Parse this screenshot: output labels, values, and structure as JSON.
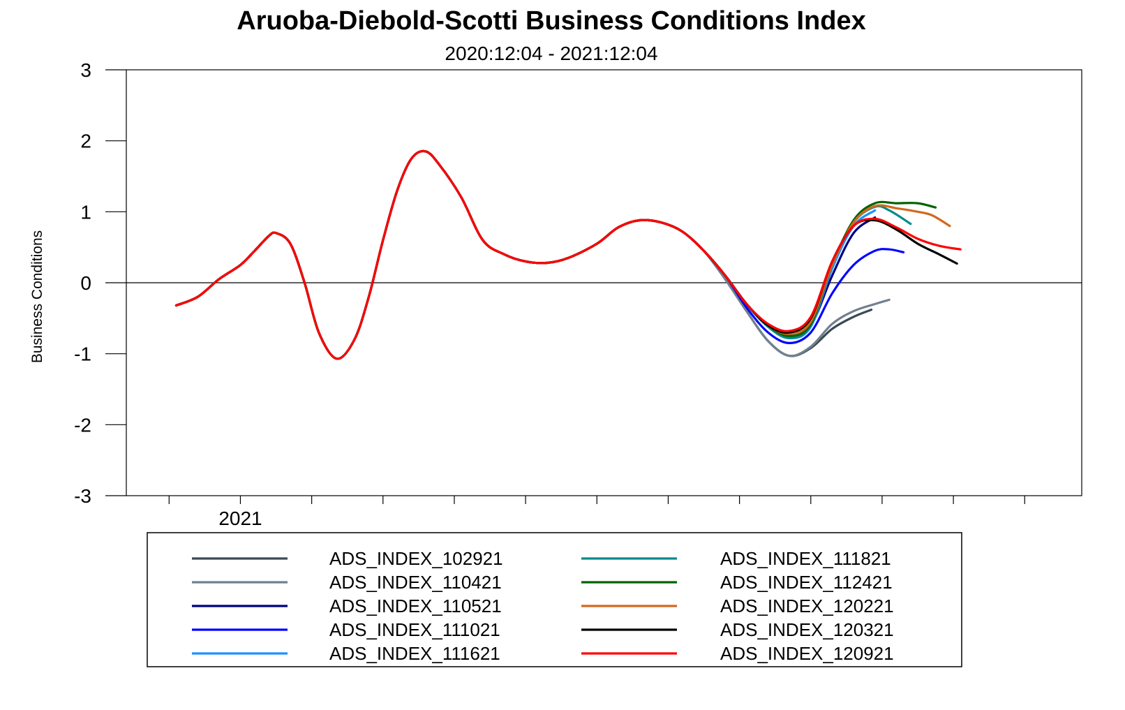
{
  "chart_data": {
    "type": "line",
    "title": "Aruoba-Diebold-Scotti Business Conditions Index",
    "subtitle": "2020:12:04 - 2021:12:04",
    "ylabel": "Business Conditions",
    "xlabel": "",
    "x_tick_label": "2021",
    "ylim": [
      -3,
      3
    ],
    "yticks": [
      "3",
      "2",
      "1",
      "0",
      "-1",
      "-2",
      "-3"
    ],
    "x_range_months": [
      -1.6,
      11.8
    ],
    "legend_position": "bottom",
    "common_path": [
      [
        -0.9,
        -0.32
      ],
      [
        -0.6,
        -0.2
      ],
      [
        -0.3,
        0.05
      ],
      [
        0.0,
        0.25
      ],
      [
        0.2,
        0.45
      ],
      [
        0.4,
        0.66
      ],
      [
        0.5,
        0.7
      ],
      [
        0.7,
        0.55
      ],
      [
        0.9,
        0.0
      ],
      [
        1.1,
        -0.7
      ],
      [
        1.35,
        -1.07
      ],
      [
        1.6,
        -0.8
      ],
      [
        1.8,
        -0.2
      ],
      [
        2.0,
        0.6
      ],
      [
        2.2,
        1.3
      ],
      [
        2.4,
        1.75
      ],
      [
        2.6,
        1.85
      ],
      [
        2.8,
        1.65
      ],
      [
        3.1,
        1.2
      ],
      [
        3.4,
        0.6
      ],
      [
        3.7,
        0.4
      ],
      [
        4.0,
        0.3
      ],
      [
        4.3,
        0.28
      ],
      [
        4.6,
        0.35
      ],
      [
        5.0,
        0.55
      ],
      [
        5.3,
        0.78
      ],
      [
        5.6,
        0.88
      ],
      [
        5.9,
        0.85
      ],
      [
        6.2,
        0.72
      ],
      [
        6.5,
        0.45
      ],
      [
        6.8,
        0.1
      ]
    ],
    "series": [
      {
        "name": "ADS_INDEX_102921",
        "color": "#3b4a54",
        "values": [
          [
            6.8,
            0.05
          ],
          [
            7.1,
            -0.4
          ],
          [
            7.4,
            -0.82
          ],
          [
            7.7,
            -1.03
          ],
          [
            8.0,
            -0.92
          ],
          [
            8.3,
            -0.65
          ],
          [
            8.6,
            -0.48
          ],
          [
            8.85,
            -0.38
          ]
        ]
      },
      {
        "name": "ADS_INDEX_110421",
        "color": "#708090",
        "values": [
          [
            6.8,
            0.05
          ],
          [
            7.1,
            -0.4
          ],
          [
            7.4,
            -0.82
          ],
          [
            7.7,
            -1.03
          ],
          [
            8.0,
            -0.9
          ],
          [
            8.3,
            -0.58
          ],
          [
            8.6,
            -0.4
          ],
          [
            8.9,
            -0.3
          ],
          [
            9.1,
            -0.24
          ]
        ]
      },
      {
        "name": "ADS_INDEX_110521",
        "color": "#000080",
        "values": [
          [
            6.8,
            0.1
          ],
          [
            7.1,
            -0.3
          ],
          [
            7.4,
            -0.6
          ],
          [
            7.7,
            -0.75
          ],
          [
            8.0,
            -0.6
          ],
          [
            8.3,
            0.1
          ],
          [
            8.6,
            0.7
          ],
          [
            8.9,
            0.92
          ]
        ]
      },
      {
        "name": "ADS_INDEX_111021",
        "color": "#0000ff",
        "values": [
          [
            6.8,
            0.1
          ],
          [
            7.1,
            -0.35
          ],
          [
            7.4,
            -0.7
          ],
          [
            7.7,
            -0.85
          ],
          [
            8.0,
            -0.7
          ],
          [
            8.3,
            -0.15
          ],
          [
            8.6,
            0.25
          ],
          [
            8.9,
            0.45
          ],
          [
            9.1,
            0.47
          ],
          [
            9.3,
            0.43
          ]
        ]
      },
      {
        "name": "ADS_INDEX_111621",
        "color": "#1e90ff",
        "values": [
          [
            6.8,
            0.1
          ],
          [
            7.1,
            -0.3
          ],
          [
            7.4,
            -0.62
          ],
          [
            7.7,
            -0.78
          ],
          [
            8.0,
            -0.62
          ],
          [
            8.3,
            0.2
          ],
          [
            8.6,
            0.8
          ],
          [
            8.9,
            1.02
          ]
        ]
      },
      {
        "name": "ADS_INDEX_111821",
        "color": "#008b8b",
        "values": [
          [
            6.8,
            0.1
          ],
          [
            7.1,
            -0.3
          ],
          [
            7.4,
            -0.62
          ],
          [
            7.7,
            -0.78
          ],
          [
            8.0,
            -0.6
          ],
          [
            8.3,
            0.25
          ],
          [
            8.6,
            0.85
          ],
          [
            8.9,
            1.07
          ],
          [
            9.1,
            1.02
          ],
          [
            9.4,
            0.83
          ]
        ]
      },
      {
        "name": "ADS_INDEX_112421",
        "color": "#006400",
        "values": [
          [
            6.8,
            0.1
          ],
          [
            7.1,
            -0.3
          ],
          [
            7.4,
            -0.6
          ],
          [
            7.7,
            -0.75
          ],
          [
            8.0,
            -0.58
          ],
          [
            8.3,
            0.25
          ],
          [
            8.6,
            0.88
          ],
          [
            8.9,
            1.12
          ],
          [
            9.2,
            1.12
          ],
          [
            9.5,
            1.12
          ],
          [
            9.75,
            1.06
          ]
        ]
      },
      {
        "name": "ADS_INDEX_120221",
        "color": "#d2691e",
        "values": [
          [
            6.8,
            0.1
          ],
          [
            7.1,
            -0.3
          ],
          [
            7.4,
            -0.6
          ],
          [
            7.7,
            -0.72
          ],
          [
            8.0,
            -0.55
          ],
          [
            8.3,
            0.25
          ],
          [
            8.6,
            0.85
          ],
          [
            8.9,
            1.08
          ],
          [
            9.2,
            1.05
          ],
          [
            9.5,
            1.0
          ],
          [
            9.7,
            0.95
          ],
          [
            9.95,
            0.8
          ]
        ]
      },
      {
        "name": "ADS_INDEX_120321",
        "color": "#000000",
        "values": [
          [
            6.8,
            0.1
          ],
          [
            7.1,
            -0.3
          ],
          [
            7.4,
            -0.6
          ],
          [
            7.7,
            -0.7
          ],
          [
            8.0,
            -0.5
          ],
          [
            8.3,
            0.3
          ],
          [
            8.6,
            0.8
          ],
          [
            8.9,
            0.88
          ],
          [
            9.2,
            0.75
          ],
          [
            9.5,
            0.55
          ],
          [
            9.8,
            0.4
          ],
          [
            10.05,
            0.27
          ]
        ]
      },
      {
        "name": "ADS_INDEX_120921",
        "color": "#ff0000",
        "values": [
          [
            6.8,
            0.1
          ],
          [
            7.1,
            -0.3
          ],
          [
            7.4,
            -0.58
          ],
          [
            7.7,
            -0.68
          ],
          [
            8.0,
            -0.48
          ],
          [
            8.3,
            0.3
          ],
          [
            8.6,
            0.8
          ],
          [
            8.9,
            0.9
          ],
          [
            9.2,
            0.78
          ],
          [
            9.5,
            0.62
          ],
          [
            9.8,
            0.52
          ],
          [
            10.1,
            0.47
          ]
        ]
      }
    ]
  }
}
